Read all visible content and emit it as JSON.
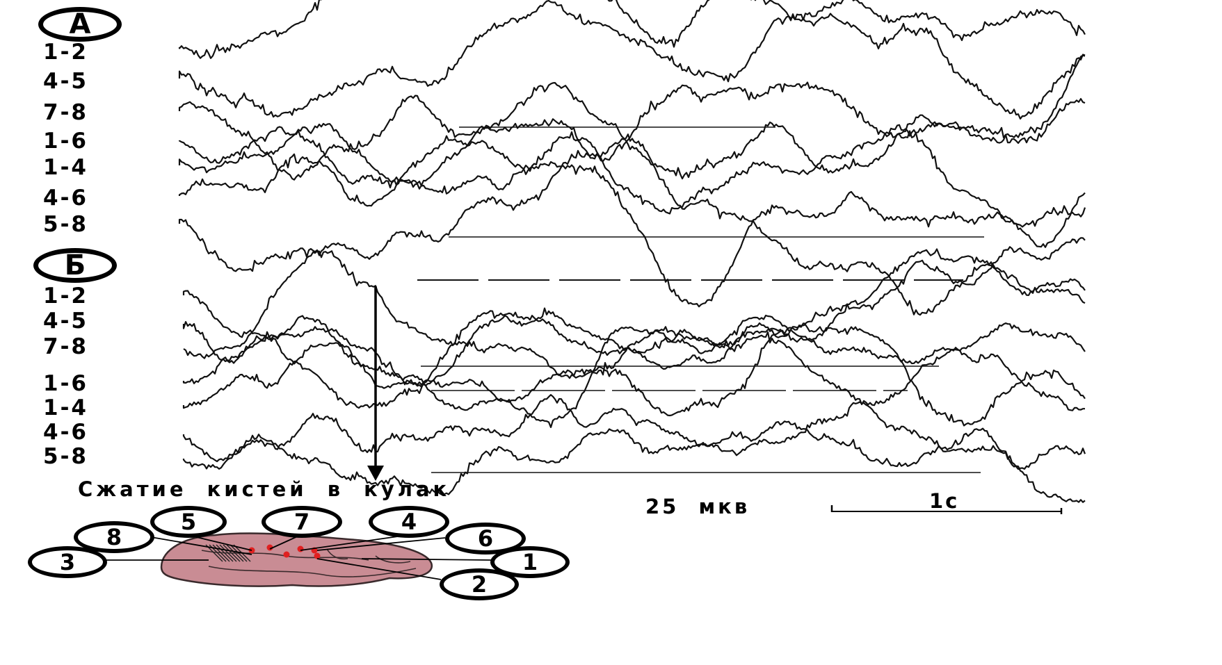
{
  "panels": [
    {
      "badge": "А",
      "channels": [
        "1-2",
        "4-5",
        "7-8",
        "1-6",
        "1-4",
        "4-6",
        "5-8"
      ]
    },
    {
      "badge": "Б",
      "channels": [
        "1-2",
        "4-5",
        "7-8",
        "1-6",
        "1-4",
        "4-6",
        "5-8"
      ]
    }
  ],
  "event_label": "Сжатие кистей в кулак",
  "scale": {
    "amplitude": "25 мкв",
    "time": "1с"
  },
  "electrodes": [
    "1",
    "2",
    "3",
    "4",
    "5",
    "6",
    "7",
    "8"
  ],
  "colors": {
    "trace": "#111111",
    "brain": "#c98c94",
    "brain_outline": "#3a2a2c",
    "electrode_dot": "#e02020"
  }
}
